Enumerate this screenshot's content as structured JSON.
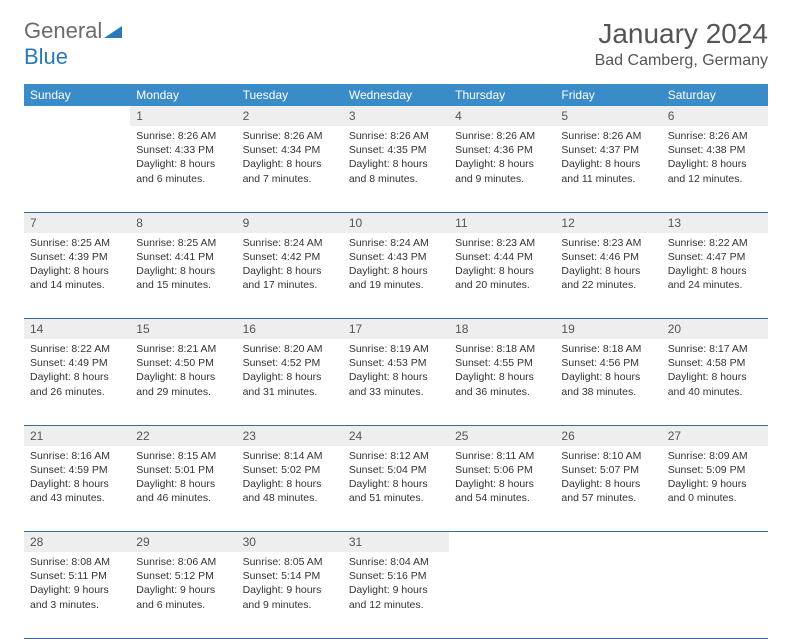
{
  "logo": {
    "text1": "General",
    "text2": "Blue"
  },
  "title": "January 2024",
  "location": "Bad Camberg, Germany",
  "colors": {
    "header_bg": "#3a8cc9",
    "header_text": "#ffffff",
    "daynum_bg": "#eeeeee",
    "border": "#3a6a9a",
    "logo_gray": "#6b6b6b",
    "logo_blue": "#2a7ab9"
  },
  "weekdays": [
    "Sunday",
    "Monday",
    "Tuesday",
    "Wednesday",
    "Thursday",
    "Friday",
    "Saturday"
  ],
  "weeks": [
    {
      "nums": [
        "",
        "1",
        "2",
        "3",
        "4",
        "5",
        "6"
      ],
      "cells": [
        "",
        "Sunrise: 8:26 AM\nSunset: 4:33 PM\nDaylight: 8 hours and 6 minutes.",
        "Sunrise: 8:26 AM\nSunset: 4:34 PM\nDaylight: 8 hours and 7 minutes.",
        "Sunrise: 8:26 AM\nSunset: 4:35 PM\nDaylight: 8 hours and 8 minutes.",
        "Sunrise: 8:26 AM\nSunset: 4:36 PM\nDaylight: 8 hours and 9 minutes.",
        "Sunrise: 8:26 AM\nSunset: 4:37 PM\nDaylight: 8 hours and 11 minutes.",
        "Sunrise: 8:26 AM\nSunset: 4:38 PM\nDaylight: 8 hours and 12 minutes."
      ]
    },
    {
      "nums": [
        "7",
        "8",
        "9",
        "10",
        "11",
        "12",
        "13"
      ],
      "cells": [
        "Sunrise: 8:25 AM\nSunset: 4:39 PM\nDaylight: 8 hours and 14 minutes.",
        "Sunrise: 8:25 AM\nSunset: 4:41 PM\nDaylight: 8 hours and 15 minutes.",
        "Sunrise: 8:24 AM\nSunset: 4:42 PM\nDaylight: 8 hours and 17 minutes.",
        "Sunrise: 8:24 AM\nSunset: 4:43 PM\nDaylight: 8 hours and 19 minutes.",
        "Sunrise: 8:23 AM\nSunset: 4:44 PM\nDaylight: 8 hours and 20 minutes.",
        "Sunrise: 8:23 AM\nSunset: 4:46 PM\nDaylight: 8 hours and 22 minutes.",
        "Sunrise: 8:22 AM\nSunset: 4:47 PM\nDaylight: 8 hours and 24 minutes."
      ]
    },
    {
      "nums": [
        "14",
        "15",
        "16",
        "17",
        "18",
        "19",
        "20"
      ],
      "cells": [
        "Sunrise: 8:22 AM\nSunset: 4:49 PM\nDaylight: 8 hours and 26 minutes.",
        "Sunrise: 8:21 AM\nSunset: 4:50 PM\nDaylight: 8 hours and 29 minutes.",
        "Sunrise: 8:20 AM\nSunset: 4:52 PM\nDaylight: 8 hours and 31 minutes.",
        "Sunrise: 8:19 AM\nSunset: 4:53 PM\nDaylight: 8 hours and 33 minutes.",
        "Sunrise: 8:18 AM\nSunset: 4:55 PM\nDaylight: 8 hours and 36 minutes.",
        "Sunrise: 8:18 AM\nSunset: 4:56 PM\nDaylight: 8 hours and 38 minutes.",
        "Sunrise: 8:17 AM\nSunset: 4:58 PM\nDaylight: 8 hours and 40 minutes."
      ]
    },
    {
      "nums": [
        "21",
        "22",
        "23",
        "24",
        "25",
        "26",
        "27"
      ],
      "cells": [
        "Sunrise: 8:16 AM\nSunset: 4:59 PM\nDaylight: 8 hours and 43 minutes.",
        "Sunrise: 8:15 AM\nSunset: 5:01 PM\nDaylight: 8 hours and 46 minutes.",
        "Sunrise: 8:14 AM\nSunset: 5:02 PM\nDaylight: 8 hours and 48 minutes.",
        "Sunrise: 8:12 AM\nSunset: 5:04 PM\nDaylight: 8 hours and 51 minutes.",
        "Sunrise: 8:11 AM\nSunset: 5:06 PM\nDaylight: 8 hours and 54 minutes.",
        "Sunrise: 8:10 AM\nSunset: 5:07 PM\nDaylight: 8 hours and 57 minutes.",
        "Sunrise: 8:09 AM\nSunset: 5:09 PM\nDaylight: 9 hours and 0 minutes."
      ]
    },
    {
      "nums": [
        "28",
        "29",
        "30",
        "31",
        "",
        "",
        ""
      ],
      "cells": [
        "Sunrise: 8:08 AM\nSunset: 5:11 PM\nDaylight: 9 hours and 3 minutes.",
        "Sunrise: 8:06 AM\nSunset: 5:12 PM\nDaylight: 9 hours and 6 minutes.",
        "Sunrise: 8:05 AM\nSunset: 5:14 PM\nDaylight: 9 hours and 9 minutes.",
        "Sunrise: 8:04 AM\nSunset: 5:16 PM\nDaylight: 9 hours and 12 minutes.",
        "",
        "",
        ""
      ]
    }
  ]
}
